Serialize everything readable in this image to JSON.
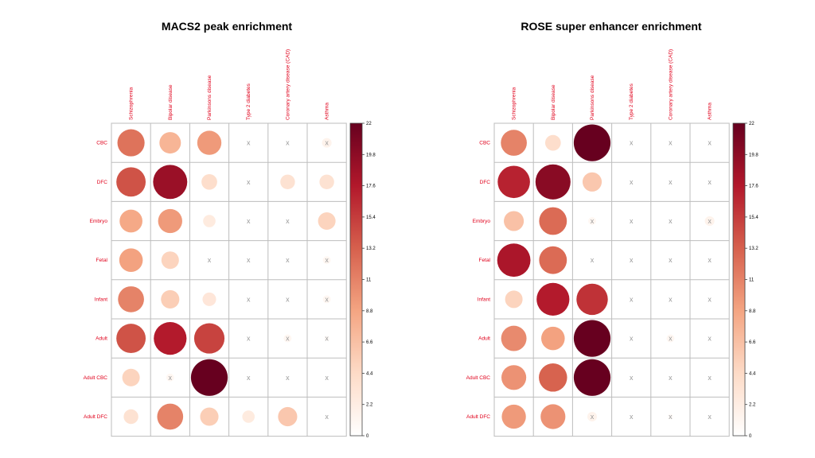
{
  "chart_data": [
    {
      "type": "heatmap",
      "title": "MACS2 peak enrichment",
      "columns": [
        "Schizophrenia",
        "Bipolar disease",
        "Parkinsons disease",
        "Type 2 diabetes",
        "Coronary artery disease (CAD)",
        "Asthma"
      ],
      "rows": [
        "CBC",
        "DFC",
        "Embryo",
        "Fetal",
        "Infant",
        "Adult",
        "Adult CBC",
        "Adult DFC"
      ],
      "values": [
        [
          12.0,
          7.5,
          9.5,
          null,
          null,
          1.5
        ],
        [
          14.0,
          19.0,
          4.0,
          null,
          3.5,
          3.5
        ],
        [
          8.5,
          9.5,
          2.5,
          null,
          null,
          5.0
        ],
        [
          9.0,
          5.0,
          null,
          null,
          null,
          1.0
        ],
        [
          11.0,
          5.5,
          3.0,
          null,
          null,
          1.0
        ],
        [
          14.0,
          17.5,
          15.0,
          null,
          1.0,
          0.5
        ],
        [
          5.0,
          1.0,
          22.0,
          null,
          null,
          null
        ],
        [
          3.5,
          11.0,
          5.5,
          2.5,
          6.0,
          null
        ]
      ],
      "colorbar": {
        "min": 0,
        "max": 22,
        "ticks": [
          "22",
          "19.8",
          "17.6",
          "15.4",
          "13.2",
          "11",
          "8.8",
          "6.6",
          "4.4",
          "2.2",
          "0"
        ]
      },
      "missing_marker": "x"
    },
    {
      "type": "heatmap",
      "title": "ROSE super enhancer enrichment",
      "columns": [
        "Schizophrenia",
        "Bipolar disease",
        "Parkinsons disease",
        "Type 2 diabetes",
        "Coronary artery disease (CAD)",
        "Asthma"
      ],
      "rows": [
        "CBC",
        "DFC",
        "Embryo",
        "Fetal",
        "Infant",
        "Adult",
        "Adult CBC",
        "Adult DFC"
      ],
      "values": [
        [
          11.0,
          4.0,
          22.0,
          null,
          null,
          null
        ],
        [
          17.0,
          20.0,
          6.0,
          null,
          null,
          null
        ],
        [
          6.5,
          12.5,
          1.0,
          null,
          null,
          1.5
        ],
        [
          18.0,
          12.5,
          null,
          null,
          null,
          null
        ],
        [
          5.0,
          17.5,
          16.0,
          null,
          null,
          null
        ],
        [
          10.5,
          9.0,
          22.0,
          null,
          1.0,
          null
        ],
        [
          10.0,
          13.0,
          22.0,
          null,
          null,
          null
        ],
        [
          9.5,
          10.0,
          1.5,
          null,
          0.5,
          null
        ]
      ],
      "colorbar": {
        "min": 0,
        "max": 22,
        "ticks": [
          "22",
          "19.8",
          "17.6",
          "15.4",
          "13.2",
          "11",
          "8.8",
          "6.6",
          "4.4",
          "2.2",
          "0"
        ]
      },
      "missing_marker": "x"
    }
  ]
}
